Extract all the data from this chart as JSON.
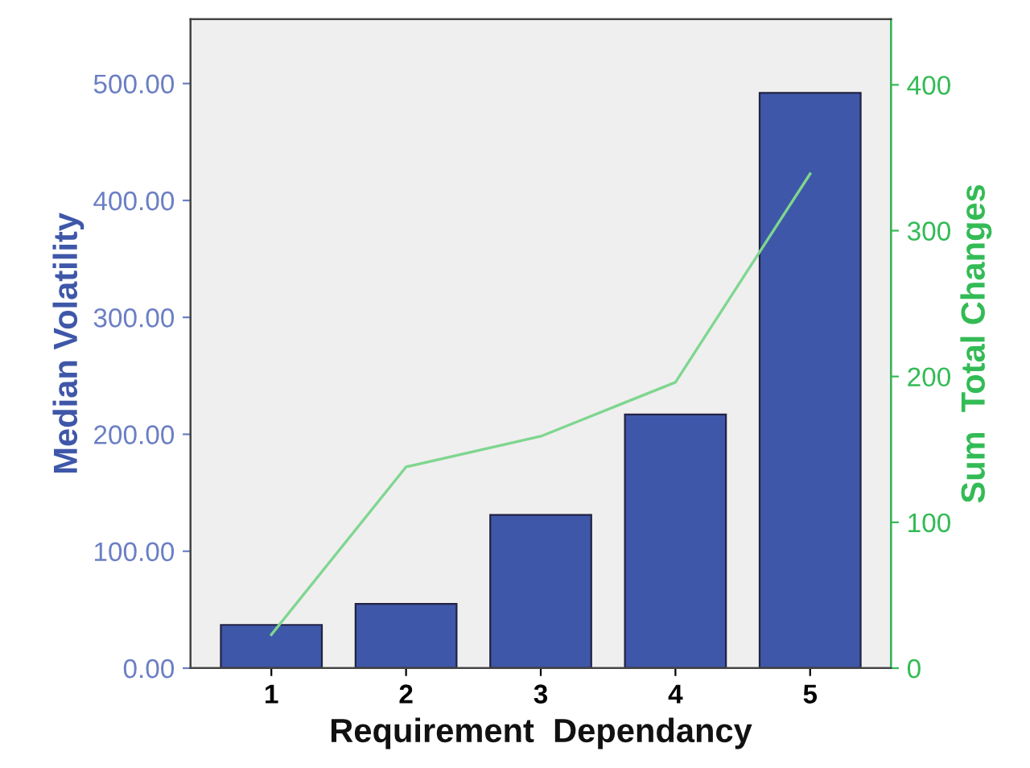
{
  "chart_data": {
    "type": "bar",
    "categories": [
      "1",
      "2",
      "3",
      "4",
      "5"
    ],
    "xlabel": "Requirement  Dependancy",
    "ylabel": "Median Volatility",
    "y2label": "Sum  Total Changes",
    "series": [
      {
        "color": "#3f57a8",
        "values": [
          37,
          55,
          131,
          217,
          492
        ]
      },
      {
        "type": "line",
        "axis": "y2",
        "color": "#7fd68f",
        "values": [
          23,
          138,
          159,
          196,
          339
        ]
      }
    ],
    "ylim": [
      0,
      555
    ],
    "yticks": [
      {
        "value": 0,
        "label": "0.00"
      },
      {
        "value": 100,
        "label": "100.00"
      },
      {
        "value": 200,
        "label": "200.00"
      },
      {
        "value": 300,
        "label": "300.00"
      },
      {
        "value": 400,
        "label": "400.00"
      },
      {
        "value": 500,
        "label": "500.00"
      }
    ],
    "y2lim": [
      0,
      445
    ],
    "y2ticks": [
      0,
      100,
      200,
      300,
      400
    ],
    "grid": false,
    "legend": false
  }
}
